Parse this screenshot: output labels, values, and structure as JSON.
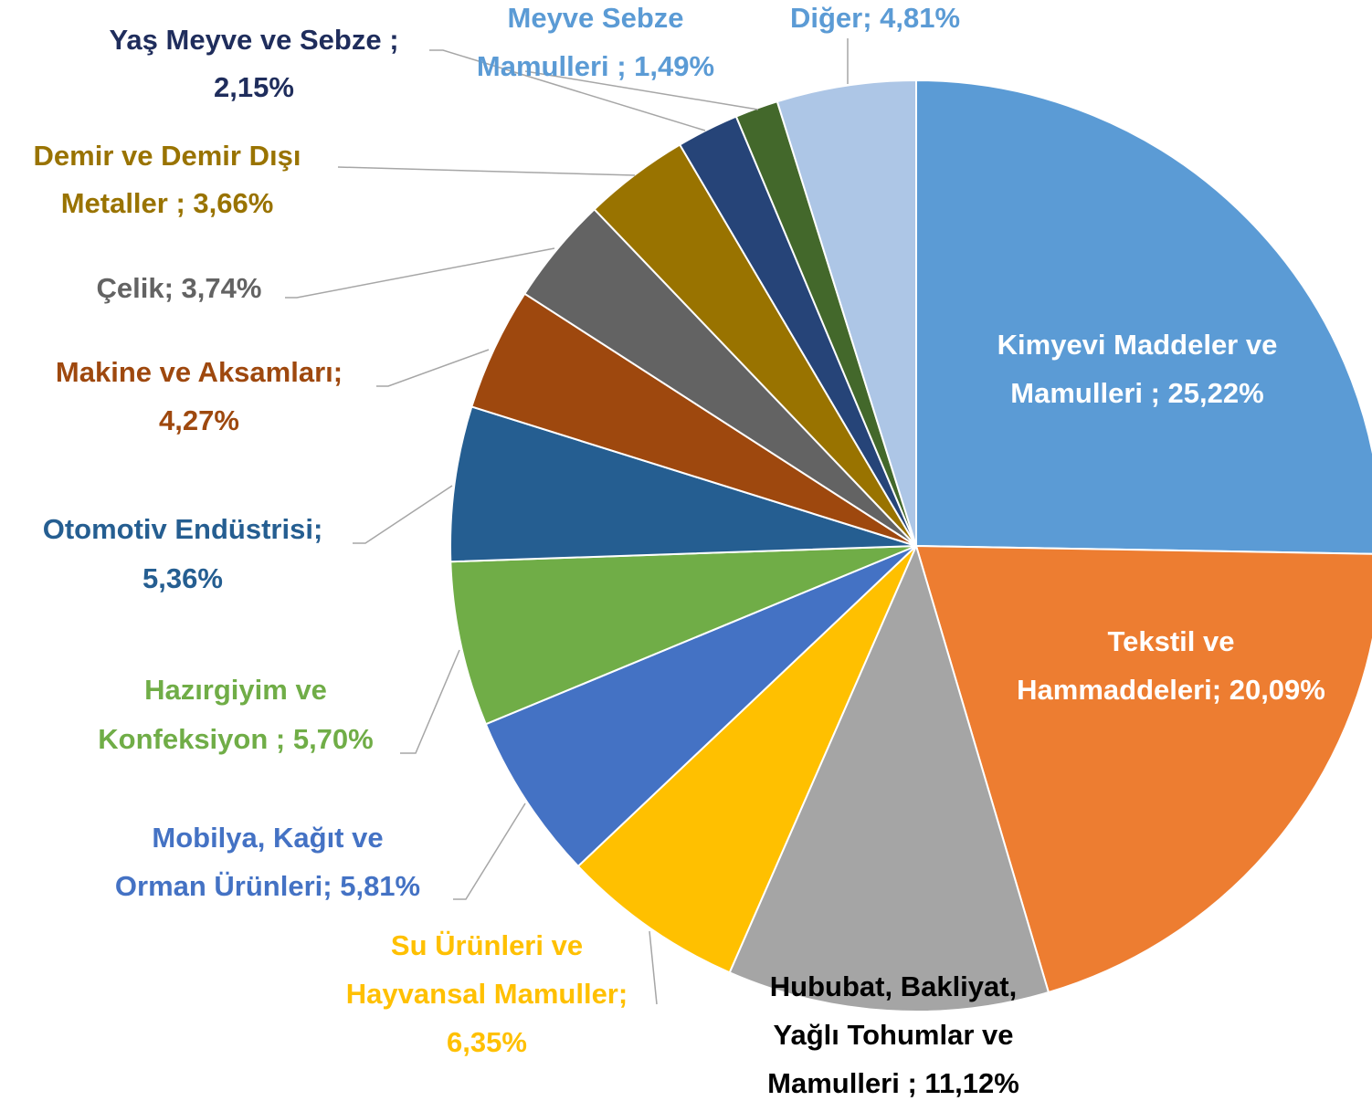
{
  "chart_data": {
    "type": "pie",
    "labels": [
      [
        "Kimyevi Maddeler ve",
        "Mamulleri  ; 25,22%"
      ],
      [
        "Tekstil ve",
        "Hammaddeleri; 20,09%"
      ],
      [
        "Hububat, Bakliyat,",
        "Yağlı Tohumlar ve",
        "Mamulleri ; 11,12%"
      ],
      [
        "Su Ürünleri ve",
        "Hayvansal Mamuller;",
        "6,35%"
      ],
      [
        "Mobilya, Kağıt ve",
        "Orman Ürünleri; 5,81%"
      ],
      [
        "Hazırgiyim ve",
        "Konfeksiyon ; 5,70%"
      ],
      [
        "Otomotiv Endüstrisi;",
        "5,36%"
      ],
      [
        "Makine ve Aksamları;",
        "4,27%"
      ],
      [
        "Çelik; 3,74%"
      ],
      [
        "Demir ve Demir Dışı",
        "Metaller ; 3,66%"
      ],
      [
        "Yaş Meyve ve Sebze  ;",
        "2,15%"
      ],
      [
        "Meyve Sebze",
        "Mamulleri ; 1,49%"
      ],
      [
        "Diğer; 4,81%"
      ]
    ],
    "values": [
      25.22,
      20.09,
      11.12,
      6.35,
      5.81,
      5.7,
      5.36,
      4.27,
      3.74,
      3.66,
      2.15,
      1.49,
      4.81
    ],
    "colors": [
      "#5b9bd5",
      "#ed7d31",
      "#a5a5a5",
      "#ffc000",
      "#4472c4",
      "#70ad47",
      "#255e91",
      "#9e480e",
      "#636363",
      "#997300",
      "#264478",
      "#43682b",
      "#adc6e6"
    ],
    "label_colors": [
      "#ffffff",
      "#ffffff",
      "#000000",
      "#ffc000",
      "#4472c4",
      "#70ad47",
      "#255e91",
      "#9e480e",
      "#636363",
      "#997300",
      "#1f2d5c",
      "#5b9bd5",
      "#5b9bd5"
    ]
  }
}
